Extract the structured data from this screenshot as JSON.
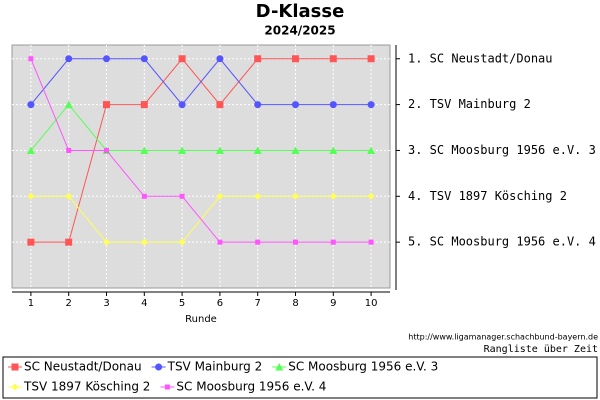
{
  "chart_data": {
    "type": "line",
    "title": "D-Klasse",
    "subtitle": "2024/2025",
    "x_label": "Runde",
    "x": [
      1,
      2,
      3,
      4,
      5,
      6,
      7,
      8,
      9,
      10
    ],
    "xlim": [
      0.5,
      10.5
    ],
    "xticks": [
      1,
      2,
      3,
      4,
      5,
      6,
      7,
      8,
      9,
      10
    ],
    "ylim": [
      6,
      0.7
    ],
    "yticks": [
      {
        "value": 1,
        "label": "1. SC Neustadt/Donau"
      },
      {
        "value": 2,
        "label": "2. TSV Mainburg 2"
      },
      {
        "value": 3,
        "label": "3. SC Moosburg 1956 e.V. 3"
      },
      {
        "value": 4,
        "label": "4. TSV 1897 Kösching 2"
      },
      {
        "value": 5,
        "label": "5. SC Moosburg 1956 e.V. 4"
      }
    ],
    "grid": true,
    "series": [
      {
        "name": "SC Neustadt/Donau",
        "color": "#ff5555",
        "marker": "square",
        "values": [
          5,
          5,
          2,
          2,
          1,
          2,
          1,
          1,
          1,
          1
        ]
      },
      {
        "name": "TSV Mainburg 2",
        "color": "#5555ff",
        "marker": "circle",
        "values": [
          2,
          1,
          1,
          1,
          2,
          1,
          2,
          2,
          2,
          2
        ]
      },
      {
        "name": "SC Moosburg 1956 e.V. 3",
        "color": "#55ff55",
        "marker": "triangle",
        "values": [
          3,
          2,
          3,
          3,
          3,
          3,
          3,
          3,
          3,
          3
        ]
      },
      {
        "name": "TSV 1897 Kösching 2",
        "color": "#ffff55",
        "marker": "diamond",
        "values": [
          4,
          4,
          5,
          5,
          5,
          4,
          4,
          4,
          4,
          4
        ]
      },
      {
        "name": "SC Moosburg 1956 e.V. 4",
        "color": "#ff55ff",
        "marker": "small-square",
        "values": [
          1,
          3,
          3,
          4,
          4,
          5,
          5,
          5,
          5,
          5
        ]
      }
    ],
    "source": "http://www.ligamanager.schachbund-bayern.de",
    "note": "Rangliste über Zeit"
  }
}
